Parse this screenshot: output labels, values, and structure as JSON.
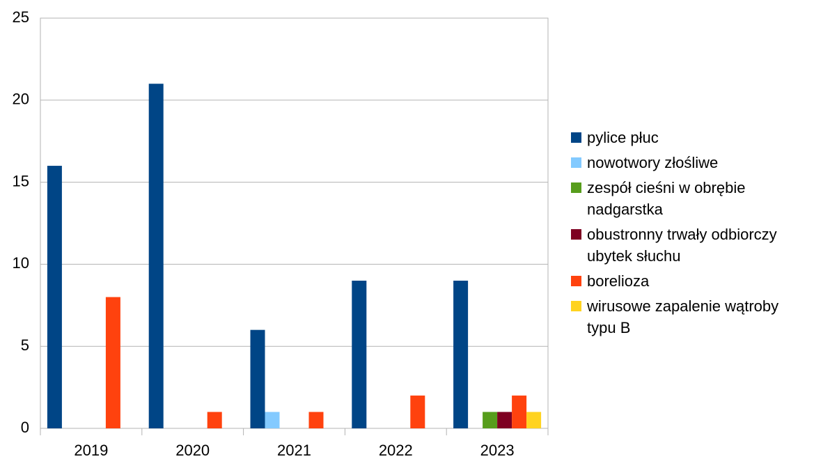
{
  "chart_data": {
    "type": "bar",
    "categories": [
      "2019",
      "2020",
      "2021",
      "2022",
      "2023"
    ],
    "series": [
      {
        "name": "pylice płuc",
        "color": "#004586",
        "values": [
          16,
          21,
          6,
          9,
          9
        ]
      },
      {
        "name": "nowotwory złośliwe",
        "color": "#83caff",
        "values": [
          0,
          0,
          1,
          0,
          0
        ]
      },
      {
        "name": "zespół cieśni w obrębie nadgarstka",
        "color": "#579d1c",
        "values": [
          0,
          0,
          0,
          0,
          1
        ]
      },
      {
        "name": "obustronny trwały odbiorczy ubytek słuchu",
        "color": "#7e0021",
        "values": [
          0,
          0,
          0,
          0,
          1
        ]
      },
      {
        "name": "borelioza",
        "color": "#ff420e",
        "values": [
          8,
          1,
          1,
          2,
          2
        ]
      },
      {
        "name": "wirusowe zapalenie wątroby typu B",
        "color": "#ffd320",
        "values": [
          0,
          0,
          0,
          0,
          1
        ]
      }
    ],
    "ylim": [
      0,
      25
    ],
    "yticks": [
      0,
      5,
      10,
      15,
      20,
      25
    ],
    "grid": true,
    "legend": "right"
  }
}
